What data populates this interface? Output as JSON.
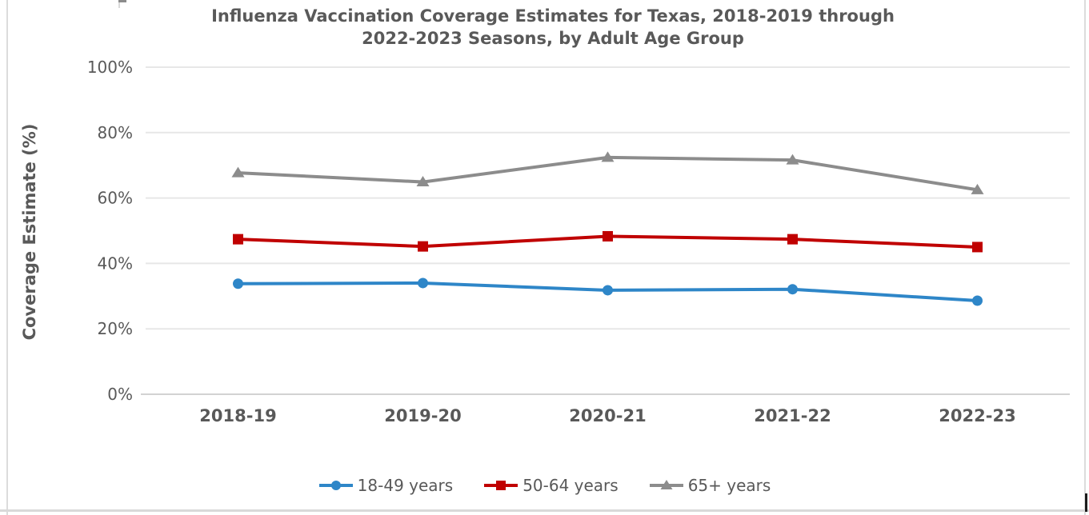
{
  "chart_data": {
    "type": "line",
    "title": "Influenza Vaccination Coverage Estimates for Texas, 2018-2019 through 2022-2023 Seasons, by Adult Age Group",
    "title_lines": [
      "Influenza Vaccination Coverage Estimates for Texas, 2018-2019 through",
      "2022-2023 Seasons, by Adult Age Group"
    ],
    "xlabel": "",
    "ylabel": "Coverage Estimate (%)",
    "categories": [
      "2018-19",
      "2019-20",
      "2020-21",
      "2021-22",
      "2022-23"
    ],
    "series": [
      {
        "name": "18-49 years",
        "marker": "circle",
        "color": "#2E86C8",
        "values": [
          33.8,
          34.0,
          31.8,
          32.1,
          28.6
        ]
      },
      {
        "name": "50-64 years",
        "marker": "square",
        "color": "#C00000",
        "values": [
          47.4,
          45.2,
          48.3,
          47.4,
          45.0
        ]
      },
      {
        "name": "65+ years",
        "marker": "triangle",
        "color": "#8C8C8C",
        "values": [
          67.7,
          64.9,
          72.4,
          71.6,
          62.5
        ]
      }
    ],
    "ylim": [
      0,
      100
    ],
    "yticks": [
      0,
      20,
      40,
      60,
      80,
      100
    ],
    "ytick_labels": [
      "0%",
      "20%",
      "40%",
      "60%",
      "80%",
      "100%"
    ],
    "grid": true,
    "legend_position": "bottom"
  },
  "styles": {
    "text_color": "#595959",
    "gridline_color": "#E7E7E7",
    "axis_line_color": "#D2D2D2",
    "background": "#FFFFFF",
    "border_color": "#D9D9D9"
  }
}
